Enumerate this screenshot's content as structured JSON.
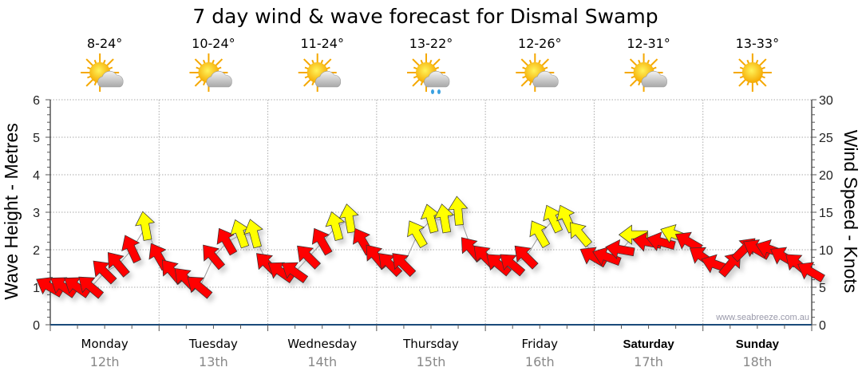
{
  "chart_data": {
    "type": "scatter",
    "title": "7 day wind & wave forecast for Dismal Swamp",
    "ylabel_left": "Wave Height - Metres",
    "ylabel_right": "Wind Speed - Knots",
    "ylim_left": [
      0,
      6
    ],
    "ylim_right": [
      0,
      30
    ],
    "yticks_left": [
      "0",
      "1",
      "2",
      "3",
      "4",
      "5",
      "6"
    ],
    "yticks_right": [
      "0",
      "5",
      "10",
      "15",
      "20",
      "25",
      "30"
    ],
    "grid": true,
    "watermark": "www.seabreeze.com.au",
    "days": [
      {
        "name": "Monday",
        "date": "12th",
        "temp": "8-24°",
        "icon": "partly-cloudy-icon",
        "bold": false
      },
      {
        "name": "Tuesday",
        "date": "13th",
        "temp": "10-24°",
        "icon": "partly-cloudy-icon",
        "bold": false
      },
      {
        "name": "Wednesday",
        "date": "14th",
        "temp": "11-24°",
        "icon": "partly-cloudy-icon",
        "bold": false
      },
      {
        "name": "Thursday",
        "date": "15th",
        "temp": "13-22°",
        "icon": "partly-cloudy-rain-icon",
        "bold": false
      },
      {
        "name": "Friday",
        "date": "16th",
        "temp": "12-26°",
        "icon": "partly-cloudy-icon",
        "bold": false
      },
      {
        "name": "Saturday",
        "date": "17th",
        "temp": "12-31°",
        "icon": "partly-cloudy-icon",
        "bold": true
      },
      {
        "name": "Sunday",
        "date": "18th",
        "temp": "13-33°",
        "icon": "sunny-icon",
        "bold": true
      }
    ],
    "wind_interval_hours": 3,
    "wind_speed_knots": [
      5,
      5,
      5,
      5,
      7,
      8,
      10,
      13,
      9,
      7,
      6,
      5,
      9,
      11,
      12,
      12,
      8,
      7,
      7,
      9,
      11,
      13,
      14,
      11,
      9,
      8,
      8,
      12,
      14,
      14,
      15,
      10,
      9,
      8,
      8,
      9,
      12,
      14,
      14,
      12,
      9,
      9,
      10,
      12,
      11,
      11,
      12,
      11,
      9,
      8,
      8,
      10,
      10,
      10,
      9,
      8,
      7
    ],
    "wind_direction_deg": [
      300,
      305,
      305,
      310,
      315,
      320,
      335,
      350,
      330,
      320,
      315,
      310,
      320,
      330,
      340,
      345,
      315,
      305,
      305,
      315,
      330,
      345,
      350,
      330,
      320,
      315,
      315,
      330,
      345,
      350,
      355,
      320,
      315,
      310,
      310,
      315,
      330,
      335,
      335,
      320,
      300,
      290,
      280,
      270,
      280,
      285,
      290,
      300,
      305,
      290,
      40,
      45,
      300,
      290,
      300,
      310,
      300
    ],
    "colors": {
      "strong": "#ffff00",
      "light": "#ff0000",
      "stroke": "#333333",
      "sun": "#f5a800",
      "cloud": "#b8b8b8"
    },
    "strong_threshold_knots": 12
  }
}
